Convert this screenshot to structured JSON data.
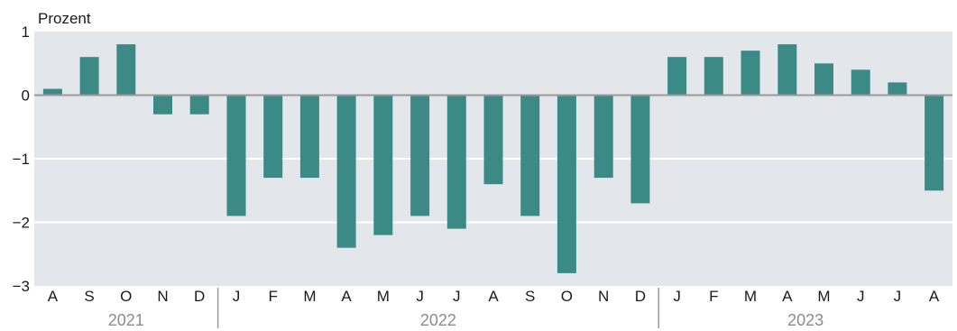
{
  "chart_data": {
    "type": "bar",
    "unit_label": "Prozent",
    "ylim": [
      -3,
      1
    ],
    "yticks": [
      1,
      0,
      -1,
      -2,
      -3
    ],
    "ytick_labels": [
      "1",
      "0",
      "−1",
      "−2",
      "−3"
    ],
    "grid": true,
    "legend": "none",
    "categories": [
      "A",
      "S",
      "O",
      "N",
      "D",
      "J",
      "F",
      "M",
      "A",
      "M",
      "J",
      "J",
      "A",
      "S",
      "O",
      "N",
      "D",
      "J",
      "F",
      "M",
      "A",
      "M",
      "J",
      "J",
      "A"
    ],
    "values": [
      0.1,
      0.6,
      0.8,
      -0.3,
      -0.3,
      -1.9,
      -1.3,
      -1.3,
      -2.4,
      -2.2,
      -1.9,
      -2.1,
      -1.4,
      -1.9,
      -2.8,
      -1.3,
      -1.7,
      0.6,
      0.6,
      0.7,
      0.8,
      0.5,
      0.4,
      0.2,
      -1.5
    ],
    "year_groups": [
      {
        "label": "2021",
        "start": 0,
        "end": 4
      },
      {
        "label": "2022",
        "start": 5,
        "end": 16
      },
      {
        "label": "2023",
        "start": 17,
        "end": 24
      }
    ],
    "colors": {
      "bar": "#3c8a86",
      "plot_background": "#e3e7ec",
      "gridline": "#ffffff",
      "zero_line": "#9a9a9a",
      "separator": "#9a9a9a"
    }
  }
}
